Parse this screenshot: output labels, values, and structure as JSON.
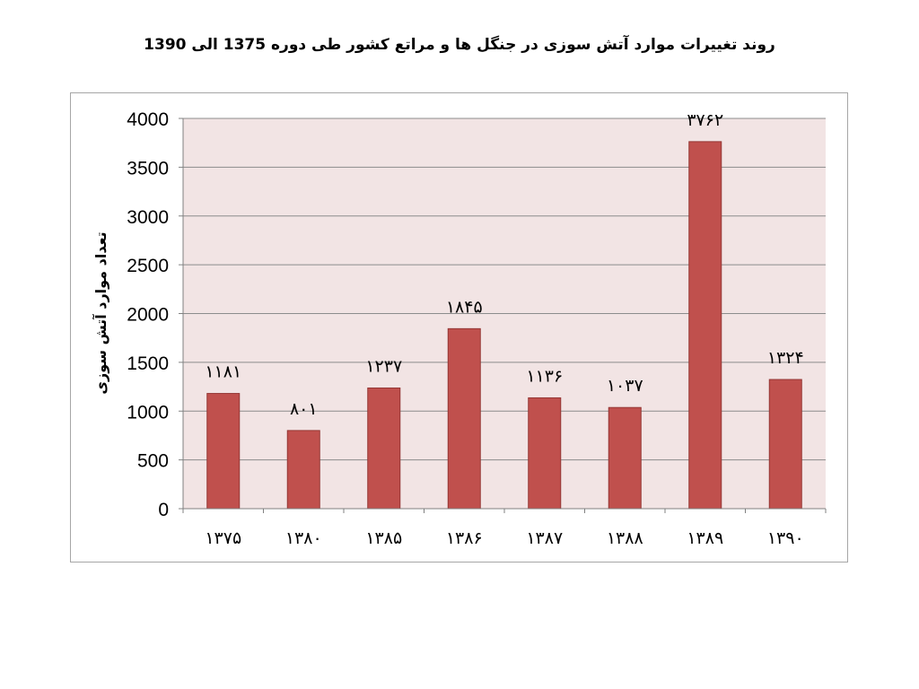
{
  "chart_data": {
    "type": "bar",
    "title": "روند تغییرات موارد آتش سوزی در جنگل ها و مراتع کشور طی دوره 1375 الی 1390",
    "xlabel": "",
    "ylabel": "تعداد موارد آتش سوزی",
    "categories": [
      "۱۳۷۵",
      "۱۳۸۰",
      "۱۳۸۵",
      "۱۳۸۶",
      "۱۳۸۷",
      "۱۳۸۸",
      "۱۳۸۹",
      "۱۳۹۰"
    ],
    "values": [
      1181,
      801,
      1237,
      1845,
      1136,
      1037,
      3762,
      1324
    ],
    "value_labels": [
      "۱۱۸۱",
      "۸۰۱",
      "۱۲۳۷",
      "۱۸۴۵",
      "۱۱۳۶",
      "۱۰۳۷",
      "۳۷۶۲",
      "۱۳۲۴"
    ],
    "yticks": [
      "0",
      "500",
      "1000",
      "1500",
      "2000",
      "2500",
      "3000",
      "3500",
      "4000"
    ],
    "ylim": [
      0,
      4000
    ],
    "grid": true,
    "legend": "none",
    "colors": {
      "bar": "#c0504d",
      "bar_border": "#943634",
      "plot_bg": "#f2e4e4",
      "grid": "#8c8c8c",
      "frame": "#a6a6a6"
    }
  }
}
